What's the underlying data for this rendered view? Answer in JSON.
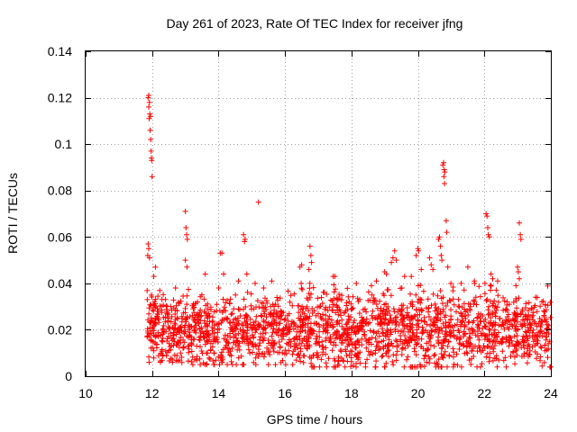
{
  "chart_data": {
    "type": "scatter",
    "title": "Day 261 of 2023, Rate Of TEC Index for receiver jfng",
    "xlabel": "GPS time / hours",
    "ylabel": "ROTI / TECUs",
    "xlim": [
      10,
      24
    ],
    "ylim": [
      0,
      0.14
    ],
    "xticks": [
      10,
      12,
      14,
      16,
      18,
      20,
      22,
      24
    ],
    "yticks": [
      0,
      0.02,
      0.04,
      0.06,
      0.08,
      0.1,
      0.12,
      0.14
    ],
    "xtick_labels": [
      "10",
      "12",
      "14",
      "16",
      "18",
      "20",
      "22",
      "24"
    ],
    "ytick_labels": [
      "0",
      "0.02",
      "0.04",
      "0.06",
      "0.08",
      "0.1",
      "0.12",
      "0.14"
    ],
    "grid": true,
    "marker": "+",
    "series": [
      {
        "name": "ROTI",
        "color": "#ff0000",
        "segments": [
          {
            "x": [
              11.85,
              12.3
            ],
            "y": [
              0.006,
              0.038
            ],
            "n": 90
          },
          {
            "x": [
              12.3,
              16.3
            ],
            "y": [
              0.005,
              0.038
            ],
            "n": 650
          },
          {
            "x": [
              16.3,
              24.0
            ],
            "y": [
              0.004,
              0.04
            ],
            "n": 1300
          }
        ],
        "points": [
          [
            11.88,
            0.12
          ],
          [
            11.9,
            0.121
          ],
          [
            11.92,
            0.118
          ],
          [
            11.9,
            0.116
          ],
          [
            11.93,
            0.113
          ],
          [
            11.95,
            0.112
          ],
          [
            11.91,
            0.111
          ],
          [
            11.94,
            0.106
          ],
          [
            11.96,
            0.102
          ],
          [
            11.97,
            0.097
          ],
          [
            11.98,
            0.094
          ],
          [
            11.99,
            0.093
          ],
          [
            12.0,
            0.086
          ],
          [
            11.88,
            0.057
          ],
          [
            11.9,
            0.055
          ],
          [
            11.87,
            0.052
          ],
          [
            11.92,
            0.051
          ],
          [
            12.1,
            0.047
          ],
          [
            12.05,
            0.043
          ],
          [
            13.0,
            0.071
          ],
          [
            13.02,
            0.064
          ],
          [
            13.04,
            0.061
          ],
          [
            13.06,
            0.059
          ],
          [
            13.0,
            0.05
          ],
          [
            13.05,
            0.047
          ],
          [
            13.6,
            0.044
          ],
          [
            14.05,
            0.053
          ],
          [
            14.1,
            0.053
          ],
          [
            14.15,
            0.044
          ],
          [
            14.75,
            0.061
          ],
          [
            14.8,
            0.059
          ],
          [
            14.78,
            0.058
          ],
          [
            14.85,
            0.044
          ],
          [
            14.6,
            0.041
          ],
          [
            15.2,
            0.075
          ],
          [
            15.1,
            0.04
          ],
          [
            15.6,
            0.041
          ],
          [
            16.45,
            0.047
          ],
          [
            16.5,
            0.048
          ],
          [
            16.75,
            0.056
          ],
          [
            16.78,
            0.052
          ],
          [
            16.8,
            0.049
          ],
          [
            16.72,
            0.046
          ],
          [
            17.45,
            0.043
          ],
          [
            17.5,
            0.043
          ],
          [
            18.6,
            0.039
          ],
          [
            18.75,
            0.041
          ],
          [
            19.0,
            0.045
          ],
          [
            19.05,
            0.044
          ],
          [
            19.2,
            0.049
          ],
          [
            19.25,
            0.051
          ],
          [
            19.3,
            0.054
          ],
          [
            19.35,
            0.05
          ],
          [
            19.6,
            0.043
          ],
          [
            19.8,
            0.043
          ],
          [
            19.95,
            0.052
          ],
          [
            20.0,
            0.055
          ],
          [
            20.02,
            0.054
          ],
          [
            20.1,
            0.046
          ],
          [
            20.35,
            0.051
          ],
          [
            20.4,
            0.048
          ],
          [
            20.45,
            0.046
          ],
          [
            20.62,
            0.059
          ],
          [
            20.65,
            0.06
          ],
          [
            20.68,
            0.056
          ],
          [
            20.7,
            0.052
          ],
          [
            20.72,
            0.05
          ],
          [
            20.75,
            0.091
          ],
          [
            20.77,
            0.092
          ],
          [
            20.79,
            0.089
          ],
          [
            20.81,
            0.088
          ],
          [
            20.78,
            0.086
          ],
          [
            20.8,
            0.083
          ],
          [
            20.85,
            0.067
          ],
          [
            20.87,
            0.062
          ],
          [
            20.9,
            0.047
          ],
          [
            21.3,
            0.04
          ],
          [
            21.5,
            0.047
          ],
          [
            21.7,
            0.041
          ],
          [
            22.05,
            0.07
          ],
          [
            22.08,
            0.069
          ],
          [
            22.1,
            0.064
          ],
          [
            22.12,
            0.061
          ],
          [
            22.15,
            0.06
          ],
          [
            22.2,
            0.044
          ],
          [
            22.25,
            0.042
          ],
          [
            22.4,
            0.041
          ],
          [
            23.05,
            0.066
          ],
          [
            23.08,
            0.061
          ],
          [
            23.1,
            0.059
          ],
          [
            23.0,
            0.047
          ],
          [
            23.02,
            0.045
          ],
          [
            23.05,
            0.042
          ],
          [
            22.95,
            0.039
          ]
        ]
      }
    ]
  }
}
